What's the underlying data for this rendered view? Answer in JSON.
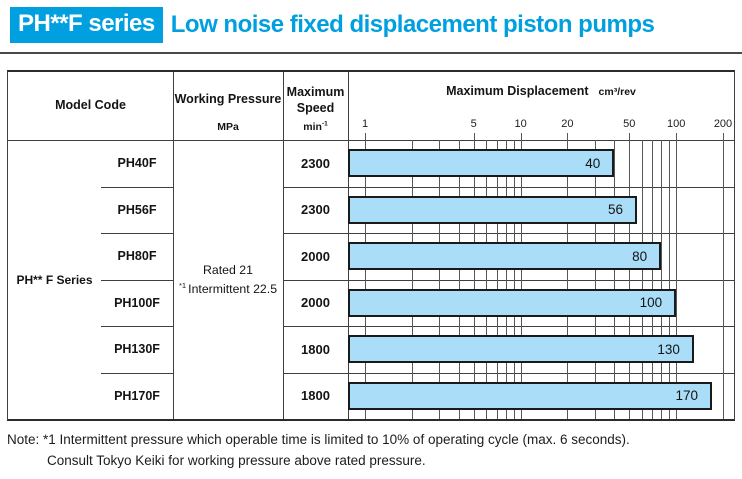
{
  "header": {
    "badge": "PH**F series",
    "title": "Low noise fixed displacement piston pumps",
    "accent_color": "#00a0e0"
  },
  "table": {
    "headers": {
      "model_code": "Model Code",
      "working_pressure": "Working Pressure",
      "working_pressure_unit": "MPa",
      "maximum_speed": "Maximum Speed",
      "speed_unit_base": "min",
      "speed_unit_exp": "-1",
      "maximum_displacement": "Maximum Displacement",
      "displacement_unit": "cm³/rev"
    },
    "series_label": "PH** F Series",
    "working_pressure": {
      "line1": "Rated 21",
      "line2_sup": "*1",
      "line2_text": "Intermittent 22.5"
    },
    "rows": [
      {
        "model": "PH40F",
        "speed": "2300",
        "displacement": 40
      },
      {
        "model": "PH56F",
        "speed": "2300",
        "displacement": 56
      },
      {
        "model": "PH80F",
        "speed": "2000",
        "displacement": 80
      },
      {
        "model": "PH100F",
        "speed": "2000",
        "displacement": 100
      },
      {
        "model": "PH130F",
        "speed": "1800",
        "displacement": 130
      },
      {
        "model": "PH170F",
        "speed": "1800",
        "displacement": 170
      }
    ]
  },
  "chart_data": {
    "type": "bar",
    "orientation": "horizontal",
    "title": "Maximum Displacement",
    "unit": "cm³/rev",
    "x_scale": "log",
    "x_range": [
      1,
      200
    ],
    "tick_labels": [
      1,
      5,
      10,
      20,
      50,
      100,
      200
    ],
    "gridlines": [
      1,
      2,
      3,
      4,
      5,
      6,
      7,
      8,
      9,
      10,
      20,
      30,
      40,
      50,
      60,
      70,
      80,
      90,
      100,
      200
    ],
    "categories": [
      "PH40F",
      "PH56F",
      "PH80F",
      "PH100F",
      "PH130F",
      "PH170F"
    ],
    "values": [
      40,
      56,
      80,
      100,
      130,
      170
    ],
    "bar_color": "#aadef8",
    "bar_border_color": "#1a1a1a",
    "grid": true,
    "legend": false
  },
  "note": {
    "line1": "Note: *1 Intermittent pressure which operable time is limited to 10% of operating cycle (max. 6 seconds).",
    "line2": "Consult Tokyo Keiki for working pressure above rated pressure."
  }
}
